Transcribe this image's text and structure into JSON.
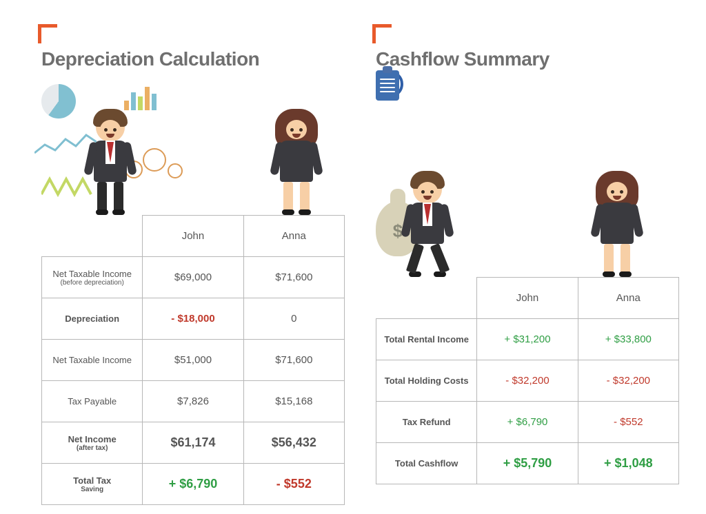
{
  "colors": {
    "accent": "#e85a2b",
    "title": "#6f6f6f",
    "border": "#b7b7b7",
    "text": "#555555",
    "positive": "#2f9e44",
    "negative": "#c0392b",
    "skin": "#f7cfa6",
    "hair_m": "#6b4a2f",
    "hair_f": "#6a3a2c",
    "suit": "#3a3a3f",
    "tie": "#b92f2f",
    "bag": "#d8d2b8",
    "clock_border": "#2f5fa8",
    "clip": "#3f6fb0",
    "doodle_blue": "#6bb5c9",
    "doodle_green": "#b9d24b",
    "doodle_orange": "#e8a24a"
  },
  "left": {
    "title": "Depreciation Calculation",
    "columns": [
      "John",
      "Anna"
    ],
    "rows": [
      {
        "label": "Net Taxable Income",
        "sublabel": "(before depreciation)",
        "bold_label": false,
        "john": {
          "text": "$69,000",
          "color": "text",
          "bold": false
        },
        "anna": {
          "text": "$71,600",
          "color": "text",
          "bold": false
        }
      },
      {
        "label": "Depreciation",
        "bold_label": true,
        "john": {
          "text": "- $18,000",
          "color": "negative",
          "bold": true
        },
        "anna": {
          "text": "0",
          "color": "text",
          "bold": false
        }
      },
      {
        "label": "Net Taxable Income",
        "bold_label": false,
        "john": {
          "text": "$51,000",
          "color": "text",
          "bold": false
        },
        "anna": {
          "text": "$71,600",
          "color": "text",
          "bold": false
        }
      },
      {
        "label": "Tax Payable",
        "bold_label": false,
        "john": {
          "text": "$7,826",
          "color": "text",
          "bold": false
        },
        "anna": {
          "text": "$15,168",
          "color": "text",
          "bold": false
        }
      },
      {
        "label": "Net Income\n(after tax)",
        "bold_label": true,
        "john": {
          "text": "$61,174",
          "color": "text",
          "bold": true,
          "big": true
        },
        "anna": {
          "text": "$56,432",
          "color": "text",
          "bold": true,
          "big": true
        }
      },
      {
        "label": "Total Tax\nSaving",
        "bold_label": true,
        "john": {
          "text": "+ $6,790",
          "color": "positive",
          "bold": true,
          "big": true
        },
        "anna": {
          "text": "- $552",
          "color": "negative",
          "bold": true,
          "big": true
        }
      }
    ]
  },
  "right": {
    "title": "Cashflow Summary",
    "columns": [
      "John",
      "Anna"
    ],
    "rows": [
      {
        "label": "Total Rental Income",
        "bold_label": true,
        "john": {
          "text": "+ $31,200",
          "color": "positive",
          "bold": false
        },
        "anna": {
          "text": "+ $33,800",
          "color": "positive",
          "bold": false
        }
      },
      {
        "label": "Total Holding Costs",
        "bold_label": true,
        "john": {
          "text": "- $32,200",
          "color": "negative",
          "bold": false
        },
        "anna": {
          "text": "- $32,200",
          "color": "negative",
          "bold": false
        }
      },
      {
        "label": "Tax Refund",
        "bold_label": true,
        "john": {
          "text": "+ $6,790",
          "color": "positive",
          "bold": false
        },
        "anna": {
          "text": "- $552",
          "color": "negative",
          "bold": false
        }
      },
      {
        "label": "Total Cashflow",
        "bold_label": true,
        "john": {
          "text": "+ $5,790",
          "color": "positive",
          "bold": true,
          "big": true
        },
        "anna": {
          "text": "+ $1,048",
          "color": "positive",
          "bold": true,
          "big": true
        }
      }
    ]
  }
}
